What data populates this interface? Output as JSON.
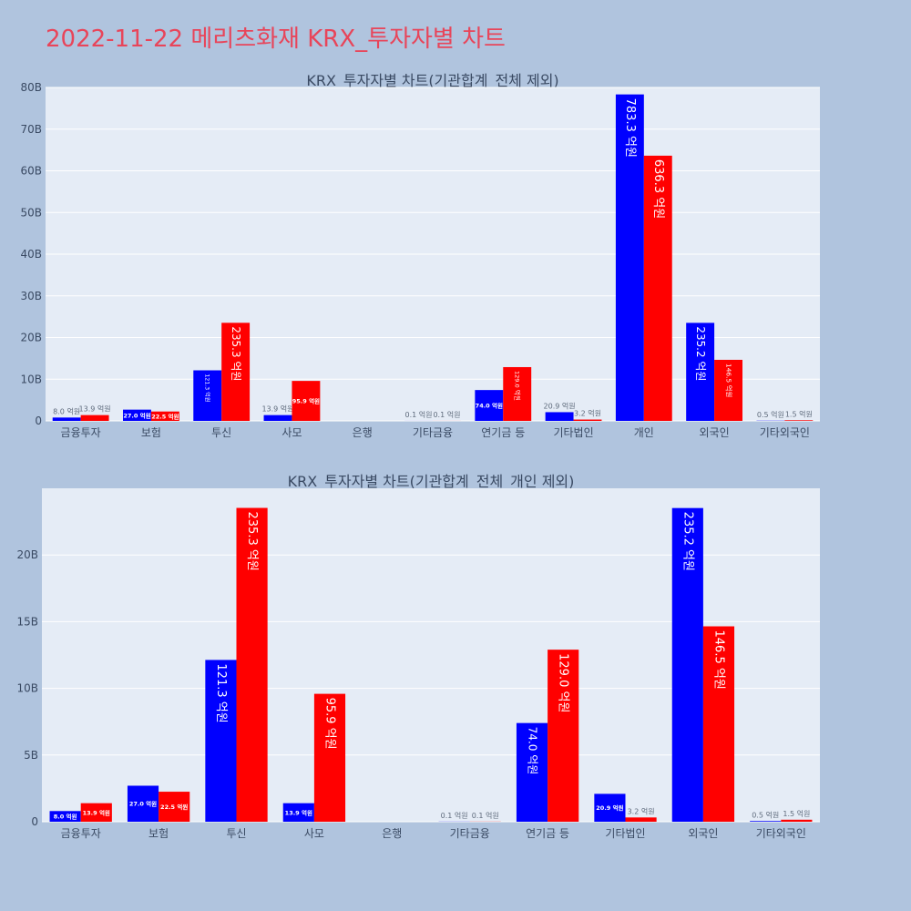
{
  "page_title": "2022-11-22 메리츠화재 KRX_투자자별 차트",
  "colors": {
    "background": "#b0c4de",
    "plot_bg": "#e5ecf6",
    "buy": "#0000ff",
    "sell": "#ff0000",
    "title": "#e8455a"
  },
  "chart_data": [
    {
      "type": "bar",
      "title": "KRX_투자자별 차트(기관합계_전체 제외)",
      "categories": [
        "금융투자",
        "보험",
        "투신",
        "사모",
        "은행",
        "기타금융",
        "연기금 등",
        "기타법인",
        "개인",
        "외국인",
        "기타외국인"
      ],
      "ylim": [
        0,
        80
      ],
      "yticks": [
        "0",
        "10B",
        "20B",
        "30B",
        "40B",
        "50B",
        "60B",
        "70B",
        "80B"
      ],
      "grid": true,
      "series": [
        {
          "color": "#0000ff",
          "values": [
            0.8,
            2.7,
            12.13,
            1.39,
            0.0,
            0.01,
            7.4,
            2.09,
            78.33,
            23.52,
            0.05
          ],
          "labels": [
            "8.0 억원",
            "27.0 억원",
            "121.3 억원",
            "13.9 억원",
            "",
            "0.1 억원",
            "74.0 억원",
            "20.9 억원",
            "783.3 억원",
            "235.2 억원",
            "0.5 억원"
          ]
        },
        {
          "color": "#ff0000",
          "values": [
            1.39,
            2.25,
            23.53,
            9.59,
            0.0,
            0.01,
            12.9,
            0.32,
            63.63,
            14.65,
            0.15
          ],
          "labels": [
            "13.9 억원",
            "22.5 억원",
            "235.3 억원",
            "95.9 억원",
            "",
            "0.1 억원",
            "129.0 억원",
            "3.2 억원",
            "636.3 억원",
            "146.5 억원",
            "1.5 억원"
          ]
        }
      ]
    },
    {
      "type": "bar",
      "title": "KRX_투자자별 차트(기관합계_전체_개인 제외)",
      "categories": [
        "금융투자",
        "보험",
        "투신",
        "사모",
        "은행",
        "기타금융",
        "연기금 등",
        "기타법인",
        "외국인",
        "기타외국인"
      ],
      "ylim": [
        0,
        25
      ],
      "yticks": [
        "0",
        "5B",
        "10B",
        "15B",
        "20B"
      ],
      "grid": true,
      "series": [
        {
          "color": "#0000ff",
          "values": [
            0.8,
            2.7,
            12.13,
            1.39,
            0.0,
            0.01,
            7.4,
            2.09,
            23.52,
            0.05
          ],
          "labels": [
            "8.0 억원",
            "27.0 억원",
            "121.3 억원",
            "13.9 억원",
            "",
            "0.1 억원",
            "74.0 억원",
            "20.9 억원",
            "235.2 억원",
            "0.5 억원"
          ]
        },
        {
          "color": "#ff0000",
          "values": [
            1.39,
            2.25,
            23.53,
            9.59,
            0.0,
            0.01,
            12.9,
            0.32,
            14.65,
            0.15
          ],
          "labels": [
            "13.9 억원",
            "22.5 억원",
            "235.3 억원",
            "95.9 억원",
            "",
            "0.1 억원",
            "129.0 억원",
            "3.2 억원",
            "146.5 억원",
            "1.5 억원"
          ]
        }
      ]
    }
  ]
}
